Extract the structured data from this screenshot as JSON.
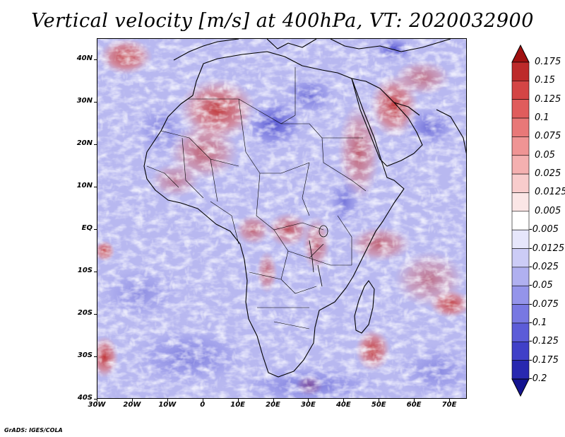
{
  "title": "Vertical velocity [m/s] at 400hPa, VT: 2020032900",
  "credit": "GrADS: IGES/COLA",
  "map": {
    "lat_labels": [
      "40N",
      "30N",
      "20N",
      "10N",
      "EQ",
      "10S",
      "20S",
      "30S",
      "40S"
    ],
    "lon_labels": [
      "30W",
      "20W",
      "10W",
      "0",
      "10E",
      "20E",
      "30E",
      "40E",
      "50E",
      "60E",
      "70E"
    ],
    "lon_range": [
      -30,
      75
    ],
    "lat_range": [
      -40,
      45
    ]
  },
  "colorbar": {
    "labels": [
      "0.175",
      "0.15",
      "0.125",
      "0.1",
      "0.075",
      "0.05",
      "0.025",
      "0.0125",
      "0.005",
      "-0.005",
      "-0.0125",
      "-0.025",
      "-0.05",
      "-0.075",
      "-0.1",
      "-0.125",
      "-0.175",
      "-0.2"
    ],
    "colors": [
      "#a01010",
      "#bd2a2a",
      "#d44545",
      "#e05c5c",
      "#e87878",
      "#ef9494",
      "#f4b0b0",
      "#f8cccc",
      "#fbe6e6",
      "#ffffff",
      "#e6e6fb",
      "#ccccf6",
      "#b0b0f0",
      "#9494ea",
      "#7878e2",
      "#5c5cd8",
      "#4040c8",
      "#2828b0",
      "#141490"
    ]
  }
}
